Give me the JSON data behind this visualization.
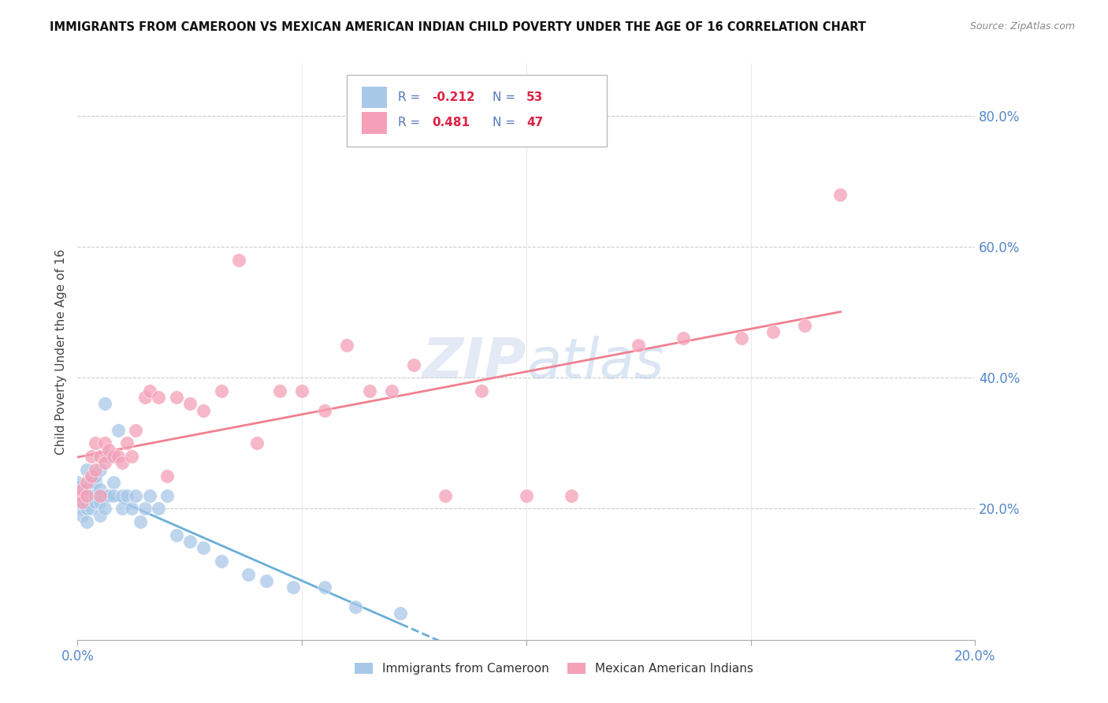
{
  "title": "IMMIGRANTS FROM CAMEROON VS MEXICAN AMERICAN INDIAN CHILD POVERTY UNDER THE AGE OF 16 CORRELATION CHART",
  "source": "Source: ZipAtlas.com",
  "ylabel": "Child Poverty Under the Age of 16",
  "yticks": [
    "20.0%",
    "40.0%",
    "60.0%",
    "80.0%"
  ],
  "ytick_vals": [
    0.2,
    0.4,
    0.6,
    0.8
  ],
  "legend_label1": "Immigrants from Cameroon",
  "legend_label2": "Mexican American Indians",
  "color_blue": "#a8c8e8",
  "color_pink": "#f4a0b8",
  "color_blue_line": "#6aaed6",
  "color_pink_line": "#f08090",
  "watermark": "ZIPatlas",
  "background_color": "#ffffff",
  "xlim": [
    0.0,
    0.2
  ],
  "ylim": [
    0.0,
    0.88
  ],
  "blue_R": -0.212,
  "blue_N": 53,
  "pink_R": 0.481,
  "pink_N": 47,
  "blue_points_x": [
    0.0,
    0.0,
    0.001,
    0.001,
    0.001,
    0.001,
    0.001,
    0.002,
    0.002,
    0.002,
    0.002,
    0.002,
    0.003,
    0.003,
    0.003,
    0.003,
    0.003,
    0.004,
    0.004,
    0.004,
    0.004,
    0.005,
    0.005,
    0.005,
    0.005,
    0.006,
    0.006,
    0.006,
    0.007,
    0.007,
    0.008,
    0.008,
    0.009,
    0.01,
    0.01,
    0.011,
    0.012,
    0.013,
    0.014,
    0.015,
    0.016,
    0.018,
    0.02,
    0.022,
    0.025,
    0.028,
    0.032,
    0.038,
    0.042,
    0.048,
    0.055,
    0.062,
    0.072
  ],
  "blue_points_y": [
    0.22,
    0.24,
    0.2,
    0.22,
    0.23,
    0.19,
    0.21,
    0.18,
    0.22,
    0.2,
    0.23,
    0.26,
    0.21,
    0.23,
    0.24,
    0.22,
    0.2,
    0.22,
    0.24,
    0.25,
    0.21,
    0.19,
    0.23,
    0.21,
    0.26,
    0.22,
    0.2,
    0.36,
    0.22,
    0.28,
    0.24,
    0.22,
    0.32,
    0.22,
    0.2,
    0.22,
    0.2,
    0.22,
    0.18,
    0.2,
    0.22,
    0.2,
    0.22,
    0.16,
    0.15,
    0.14,
    0.12,
    0.1,
    0.09,
    0.08,
    0.08,
    0.05,
    0.04
  ],
  "pink_points_x": [
    0.0,
    0.001,
    0.001,
    0.002,
    0.002,
    0.003,
    0.003,
    0.004,
    0.004,
    0.005,
    0.005,
    0.006,
    0.006,
    0.007,
    0.008,
    0.009,
    0.01,
    0.011,
    0.012,
    0.013,
    0.015,
    0.016,
    0.018,
    0.02,
    0.022,
    0.025,
    0.028,
    0.032,
    0.036,
    0.04,
    0.045,
    0.05,
    0.055,
    0.06,
    0.065,
    0.07,
    0.075,
    0.082,
    0.09,
    0.1,
    0.11,
    0.125,
    0.135,
    0.148,
    0.155,
    0.162,
    0.17
  ],
  "pink_points_y": [
    0.22,
    0.23,
    0.21,
    0.22,
    0.24,
    0.25,
    0.28,
    0.26,
    0.3,
    0.22,
    0.28,
    0.27,
    0.3,
    0.29,
    0.28,
    0.28,
    0.27,
    0.3,
    0.28,
    0.32,
    0.37,
    0.38,
    0.37,
    0.25,
    0.37,
    0.36,
    0.35,
    0.38,
    0.58,
    0.3,
    0.38,
    0.38,
    0.35,
    0.45,
    0.38,
    0.38,
    0.42,
    0.22,
    0.38,
    0.22,
    0.22,
    0.45,
    0.46,
    0.46,
    0.47,
    0.48,
    0.68
  ]
}
